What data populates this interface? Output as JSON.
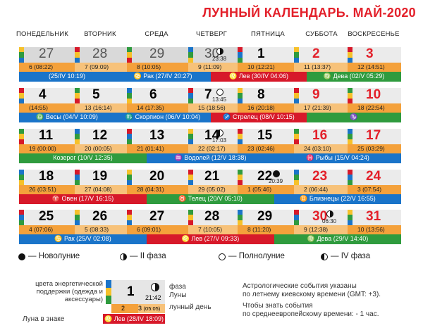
{
  "title": "ЛУННЫЙ КАЛЕНДАРЬ. МАЙ-2020",
  "days_of_week": [
    "ПОНЕДЕЛЬНИК",
    "ВТОРНИК",
    "СРЕДА",
    "ЧЕТВЕРГ",
    "ПЯТНИЦА",
    "СУББОТА",
    "ВОСКРЕСЕНЬЕ"
  ],
  "weeks": [
    {
      "days": [
        {
          "num": "27",
          "lunar": "6 (08:22)"
        },
        {
          "num": "28",
          "lunar": "7 (09:09)"
        },
        {
          "num": "29",
          "lunar": "8 (10:05)"
        },
        {
          "num": "30",
          "time": "23:38",
          "lunar": "9 (11:09)"
        },
        {
          "num": "1",
          "lunar": "10 (12:21)"
        },
        {
          "num": "2",
          "lunar": "11 (13:37)"
        },
        {
          "num": "3",
          "lunar": "12 (14:51)"
        }
      ],
      "signs": [
        {
          "label": "(25/IV 10:19)",
          "color": "#1a74c9"
        },
        {
          "label": "♋ Рак (27/IV 20:27)",
          "color": "#1a74c9"
        },
        {
          "label": "♌ Лев (30/IV 04:06)",
          "color": "#d7192a"
        },
        {
          "label": "♍ Дева (02/V 05:29)",
          "color": "#2f9b3e"
        }
      ]
    },
    {
      "days": [
        {
          "num": "4",
          "lunar": "(14:55)"
        },
        {
          "num": "5",
          "lunar": "13 (16:14)"
        },
        {
          "num": "6",
          "lunar": "14 (17:35)"
        },
        {
          "num": "7",
          "time": "13:45",
          "lunar": "15 (18:56)"
        },
        {
          "num": "8",
          "lunar": "16 (20:18)"
        },
        {
          "num": "9",
          "lunar": "17 (21:39)"
        },
        {
          "num": "10",
          "lunar": "18 (22:54)"
        }
      ],
      "signs": [
        {
          "label": "♎ Весы (04/V 10:09)",
          "color": "#1a74c9"
        },
        {
          "label": "♏ Скорпион (06/V 10:04)",
          "color": "#1a74c9"
        },
        {
          "label": "♐ Стрелец (08/V 10:15)",
          "color": "#d7192a"
        },
        {
          "label": "♑",
          "color": "#2f9b3e"
        }
      ]
    },
    {
      "days": [
        {
          "num": "11",
          "lunar": "19 (00:00)"
        },
        {
          "num": "12",
          "lunar": "20 (00:05)"
        },
        {
          "num": "13",
          "lunar": "21 (01:41)"
        },
        {
          "num": "14",
          "time": "17:03",
          "lunar": "22 (02:17)"
        },
        {
          "num": "15",
          "lunar": "23 (02:46)"
        },
        {
          "num": "16",
          "lunar": "24 (03:10)"
        },
        {
          "num": "17",
          "lunar": "25 (03:29)"
        }
      ],
      "signs": [
        {
          "label": "Козерог (10/V 12:35)",
          "color": "#2f9b3e"
        },
        {
          "label": "♒ Водолей (12/V 18:38)",
          "color": "#1a74c9"
        },
        {
          "label": "♓ Рыбы (15/V 04:24)",
          "color": "#1a74c9"
        }
      ]
    },
    {
      "days": [
        {
          "num": "18",
          "lunar": "26 (03:51)"
        },
        {
          "num": "19",
          "lunar": "27 (04:08)"
        },
        {
          "num": "20",
          "lunar": "28 (04:31)"
        },
        {
          "num": "21",
          "lunar": "29 (05:02)"
        },
        {
          "num": "22",
          "time": "20:39",
          "lunar": "1 (05:46)"
        },
        {
          "num": "23",
          "lunar": "2 (06:44)"
        },
        {
          "num": "24",
          "lunar": "3 (07:54)"
        }
      ],
      "signs": [
        {
          "label": "♈ Овен (17/V 16:15)",
          "color": "#d7192a"
        },
        {
          "label": "♉ Телец (20/V 05:10)",
          "color": "#2f9b3e"
        },
        {
          "label": "♊ Близнецы (22/V 16:55)",
          "color": "#1a74c9"
        }
      ]
    },
    {
      "days": [
        {
          "num": "25",
          "lunar": "4 (07:06)"
        },
        {
          "num": "26",
          "lunar": "5 (08:33)"
        },
        {
          "num": "27",
          "lunar": "6 (09:01)"
        },
        {
          "num": "28",
          "lunar": "7 (10:05)"
        },
        {
          "num": "29",
          "lunar": "8 (11:20)"
        },
        {
          "num": "30",
          "time": "06:30",
          "lunar": "9 (12:38)"
        },
        {
          "num": "31",
          "lunar": "10 (13:56)"
        }
      ],
      "signs": [
        {
          "label": "♋ Рак (25/V 02:08)",
          "color": "#1a74c9"
        },
        {
          "label": "♌ Лев (27/V 09:33)",
          "color": "#d7192a"
        },
        {
          "label": "♍ Дева (29/V 14:40)",
          "color": "#2f9b3e"
        }
      ]
    }
  ],
  "legend": {
    "new_moon": "— Новолуние",
    "second_phase": "— II фаза",
    "full_moon": "— Полнолуние",
    "fourth_phase": "— IV фаза"
  },
  "explain": {
    "colors_label": "цвета энергетической поддержки (одежда и аксессуары)",
    "phase_label": "фаза Луны",
    "lunar_day_label": "лунный день",
    "moon_sign_label": "Луна в знаке",
    "sample_num": "1",
    "sample_time": "21:42",
    "sample_day_a": "2",
    "sample_day_b": "3",
    "sample_day_b_time": "(05:05)",
    "sample_sign": "♌ Лев (28/IV 18:09)"
  },
  "notes": {
    "line1": "Астрологические события указаны",
    "line2": "по летнему киевскому времени (GMT: +3).",
    "line3": "Чтобы знать события",
    "line4": "по среднеевропейскому времени: - 1 час."
  },
  "colors": {
    "red": "#e3202a",
    "orange_band": "#f4a13b",
    "grey_cell": "#d9d9d9",
    "blue": "#1a74c9",
    "green": "#2f9b3e"
  }
}
